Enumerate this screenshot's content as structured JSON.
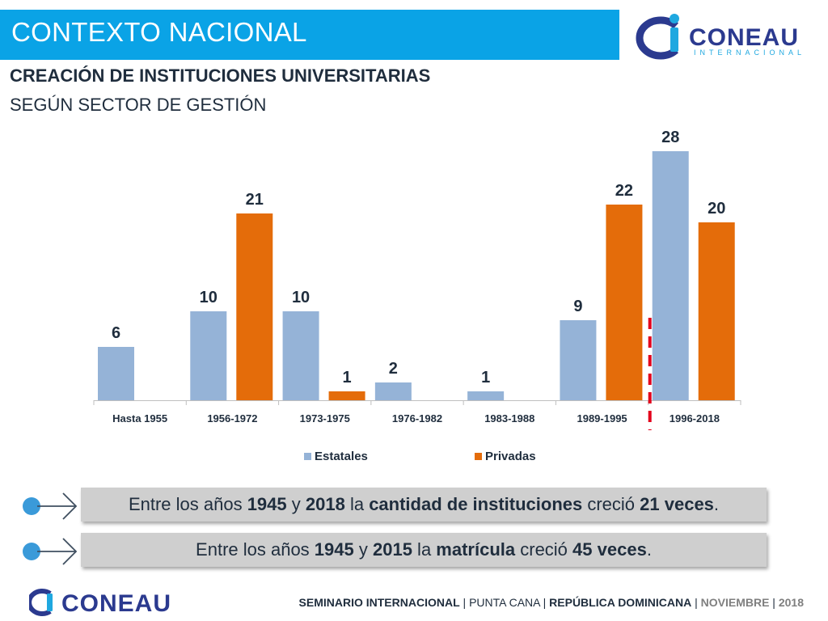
{
  "header": {
    "title": "CONTEXTO NACIONAL",
    "logo_text": "CONEAU",
    "logo_subtext": "INTERNACIONAL"
  },
  "subtitle": {
    "line1": "CREACIÓN DE INSTITUCIONES UNIVERSITARIAS",
    "line2": "SEGÚN SECTOR DE GESTIÓN"
  },
  "colors": {
    "header_bg": "#0aa3e6",
    "estatales": "#95b3d7",
    "privadas": "#e46c0a",
    "divider": "#e3001b",
    "logo_navy": "#2b3a8f",
    "logo_cyan": "#1fa8e0"
  },
  "chart_data": {
    "type": "bar",
    "title": "CREACIÓN DE INSTITUCIONES UNIVERSITARIAS SEGÚN SECTOR DE GESTIÓN",
    "categories": [
      "Hasta 1955",
      "1956-1972",
      "1973-1975",
      "1976-1982",
      "1983-1988",
      "1989-1995",
      "1996-2018"
    ],
    "series": [
      {
        "name": "Estatales",
        "values": [
          6,
          10,
          10,
          2,
          1,
          9,
          28
        ]
      },
      {
        "name": "Privadas",
        "values": [
          null,
          21,
          1,
          null,
          null,
          22,
          20
        ]
      }
    ],
    "xlabel": "",
    "ylabel": "",
    "ylim": [
      0,
      30
    ],
    "grid": false,
    "legend": "bottom"
  },
  "callouts": [
    {
      "parts": [
        {
          "text": "Entre los años ",
          "bold": false
        },
        {
          "text": "1945",
          "bold": true
        },
        {
          "text": " y ",
          "bold": false
        },
        {
          "text": "2018",
          "bold": true
        },
        {
          "text": " la ",
          "bold": false
        },
        {
          "text": "cantidad de instituciones",
          "bold": true
        },
        {
          "text": " creció ",
          "bold": false
        },
        {
          "text": "21 veces",
          "bold": true
        },
        {
          "text": ".",
          "bold": false
        }
      ]
    },
    {
      "parts": [
        {
          "text": "Entre los años ",
          "bold": false
        },
        {
          "text": "1945",
          "bold": true
        },
        {
          "text": " y ",
          "bold": false
        },
        {
          "text": "2015",
          "bold": true
        },
        {
          "text": " la ",
          "bold": false
        },
        {
          "text": "matrícula",
          "bold": true
        },
        {
          "text": " creció ",
          "bold": false
        },
        {
          "text": "45 veces",
          "bold": true
        },
        {
          "text": ".",
          "bold": false
        }
      ]
    }
  ],
  "footer": {
    "logo_text": "CONEAU",
    "seminar": "SEMINARIO INTERNACIONAL",
    "sep": " | ",
    "location": "PUNTA CANA",
    "country": "REPÚBLICA DOMINICANA",
    "month": "NOVIEMBRE",
    "year": "2018"
  },
  "icons": {
    "bullet": "circle-bullet-icon",
    "arrow": "arrow-right-icon",
    "logo": "coneau-logo-icon"
  }
}
